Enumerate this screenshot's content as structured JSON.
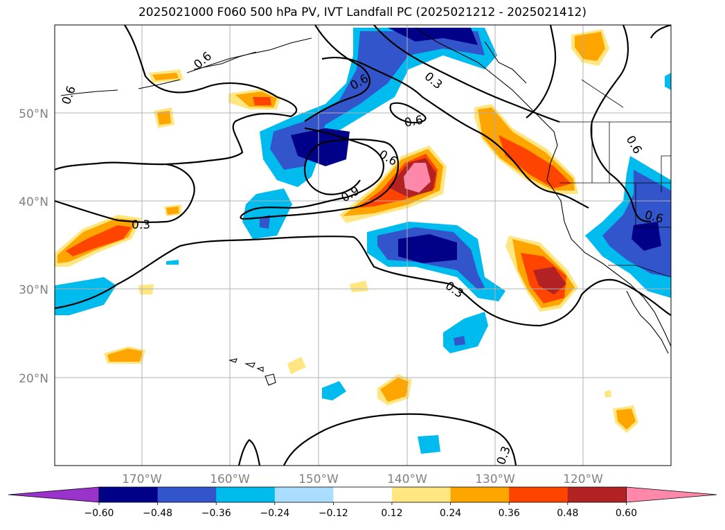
{
  "title": "2025021000 F060 500 hPa PV, IVT Landfall PC (2025021212 - 2025021412)",
  "lon_labels": [
    "170°W",
    "160°W",
    "150°W",
    "140°W",
    "130°W",
    "120°W"
  ],
  "lat_labels": [
    "50°N",
    "40°N",
    "30°N",
    "20°N"
  ],
  "colorbar": {
    "colors": [
      "#9933cc",
      "#000088",
      "#3355cc",
      "#00bbee",
      "#aaddff",
      "#ffffff",
      "#ffe680",
      "#ffa500",
      "#ff4400",
      "#b22222",
      "#ff88aa"
    ],
    "tick_labels": [
      "−0.60",
      "−0.48",
      "−0.36",
      "−0.24",
      "−0.12",
      "0.12",
      "0.24",
      "0.36",
      "0.48",
      "0.60"
    ]
  },
  "contour_labels": {
    "c1": "0.6",
    "c2": "0.6",
    "c3": "0.6",
    "c4": "0.3",
    "c5": "0.6",
    "c6": "0.9",
    "c7": "0.3",
    "c8": "0.3",
    "c9": "0.6",
    "c10": "0.3",
    "c11": "0.6"
  }
}
